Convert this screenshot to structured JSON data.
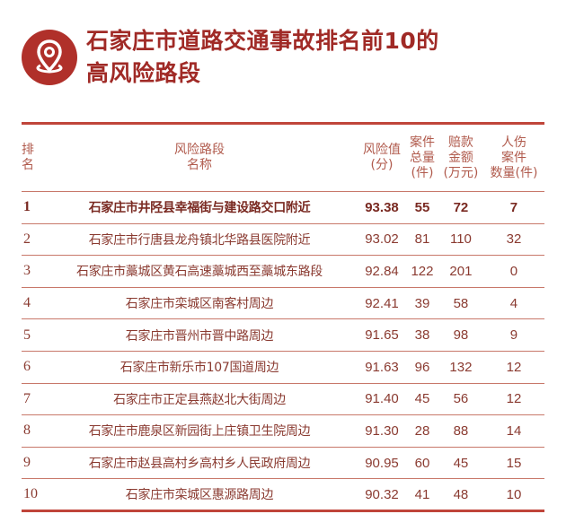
{
  "title": {
    "line1": "石家庄市道路交通事故排名前10的",
    "line2": "高风险路段",
    "icon": "location-pin-icon"
  },
  "colors": {
    "accent": "#a02a26",
    "text": "#8a3a30"
  },
  "table": {
    "headers": [
      [
        "排",
        "名"
      ],
      [
        "风险路段",
        "名称"
      ],
      [
        "风险值",
        "(分)"
      ],
      [
        "案件",
        "总量",
        "(件)"
      ],
      [
        "赔款",
        "金额",
        "(万元)"
      ],
      [
        "人伤",
        "案件",
        "数量(件)"
      ]
    ],
    "rows": [
      [
        "1",
        "石家庄市井陉县幸福街与建设路交口附近",
        "93.38",
        "55",
        "72",
        "7"
      ],
      [
        "2",
        "石家庄市行唐县龙舟镇北华路县医院附近",
        "93.02",
        "81",
        "110",
        "32"
      ],
      [
        "3",
        "石家庄市藁城区黄石高速藁城西至藁城东路段",
        "92.84",
        "122",
        "201",
        "0"
      ],
      [
        "4",
        "石家庄市栾城区南客村周边",
        "92.41",
        "39",
        "58",
        "4"
      ],
      [
        "5",
        "石家庄市晋州市晋中路周边",
        "91.65",
        "38",
        "98",
        "9"
      ],
      [
        "6",
        "石家庄市新乐市107国道周边",
        "91.63",
        "96",
        "132",
        "12"
      ],
      [
        "7",
        "石家庄市正定县燕赵北大街周边",
        "91.40",
        "45",
        "56",
        "12"
      ],
      [
        "8",
        "石家庄市鹿泉区新园街上庄镇卫生院周边",
        "91.30",
        "28",
        "88",
        "14"
      ],
      [
        "9",
        "石家庄市赵县高村乡高村乡人民政府周边",
        "90.95",
        "60",
        "45",
        "15"
      ],
      [
        "10",
        "石家庄市栾城区惠源路周边",
        "90.32",
        "41",
        "48",
        "10"
      ]
    ]
  }
}
